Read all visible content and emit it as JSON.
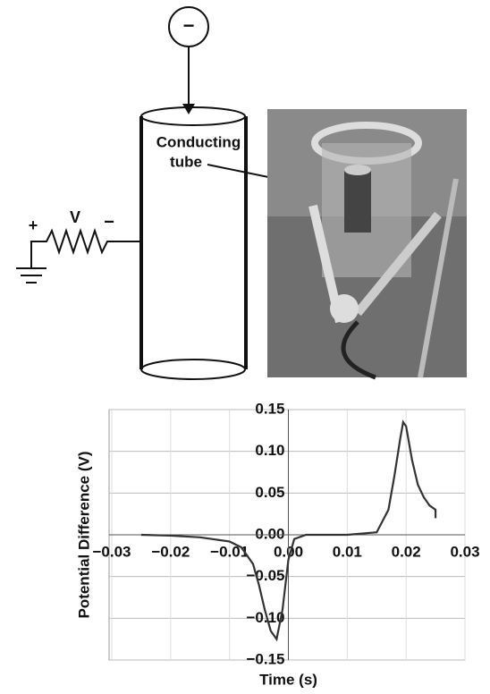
{
  "diagram": {
    "source_symbol": "−",
    "tube_label": [
      "Conducting",
      "tube"
    ],
    "circuit": {
      "plus": "+",
      "voltage": "V",
      "minus": "−"
    }
  },
  "chart_data": {
    "type": "line",
    "xlabel": "Time (s)",
    "ylabel": "Potential Difference (V)",
    "x": [
      -0.025,
      -0.02,
      -0.015,
      -0.01,
      -0.008,
      -0.006,
      -0.005,
      -0.004,
      -0.003,
      -0.002,
      -0.001,
      0.0,
      0.001,
      0.003,
      0.01,
      0.015,
      0.017,
      0.018,
      0.019,
      0.0195,
      0.02,
      0.021,
      0.022,
      0.023,
      0.024,
      0.025,
      0.025
    ],
    "values": [
      0.0,
      -0.001,
      -0.003,
      -0.008,
      -0.015,
      -0.035,
      -0.06,
      -0.09,
      -0.115,
      -0.125,
      -0.09,
      -0.03,
      -0.005,
      0.0,
      0.0,
      0.003,
      0.03,
      0.07,
      0.115,
      0.135,
      0.13,
      0.09,
      0.06,
      0.045,
      0.035,
      0.03,
      0.02
    ],
    "color": "#333333",
    "xlim": [
      -0.03,
      0.03
    ],
    "xticks": [
      {
        "value": -0.03,
        "label": "−0.03"
      },
      {
        "value": -0.02,
        "label": "−0.02"
      },
      {
        "value": -0.01,
        "label": "−0.01"
      },
      {
        "value": 0,
        "label": "0.00"
      },
      {
        "value": 0.01,
        "label": "0.01"
      },
      {
        "value": 0.02,
        "label": "0.02"
      },
      {
        "value": 0.03,
        "label": "0.03"
      }
    ],
    "ylim": [
      -0.15,
      0.15
    ],
    "yticks": [
      {
        "value": -0.15,
        "label": "−0.15"
      },
      {
        "value": -0.1,
        "label": "−0.10"
      },
      {
        "value": -0.05,
        "label": "−0.05"
      },
      {
        "value": 0,
        "label": "0.00"
      },
      {
        "value": 0.05,
        "label": "0.05"
      },
      {
        "value": 0.1,
        "label": "0.10"
      },
      {
        "value": 0.15,
        "label": "0.15"
      }
    ],
    "grid": true
  }
}
